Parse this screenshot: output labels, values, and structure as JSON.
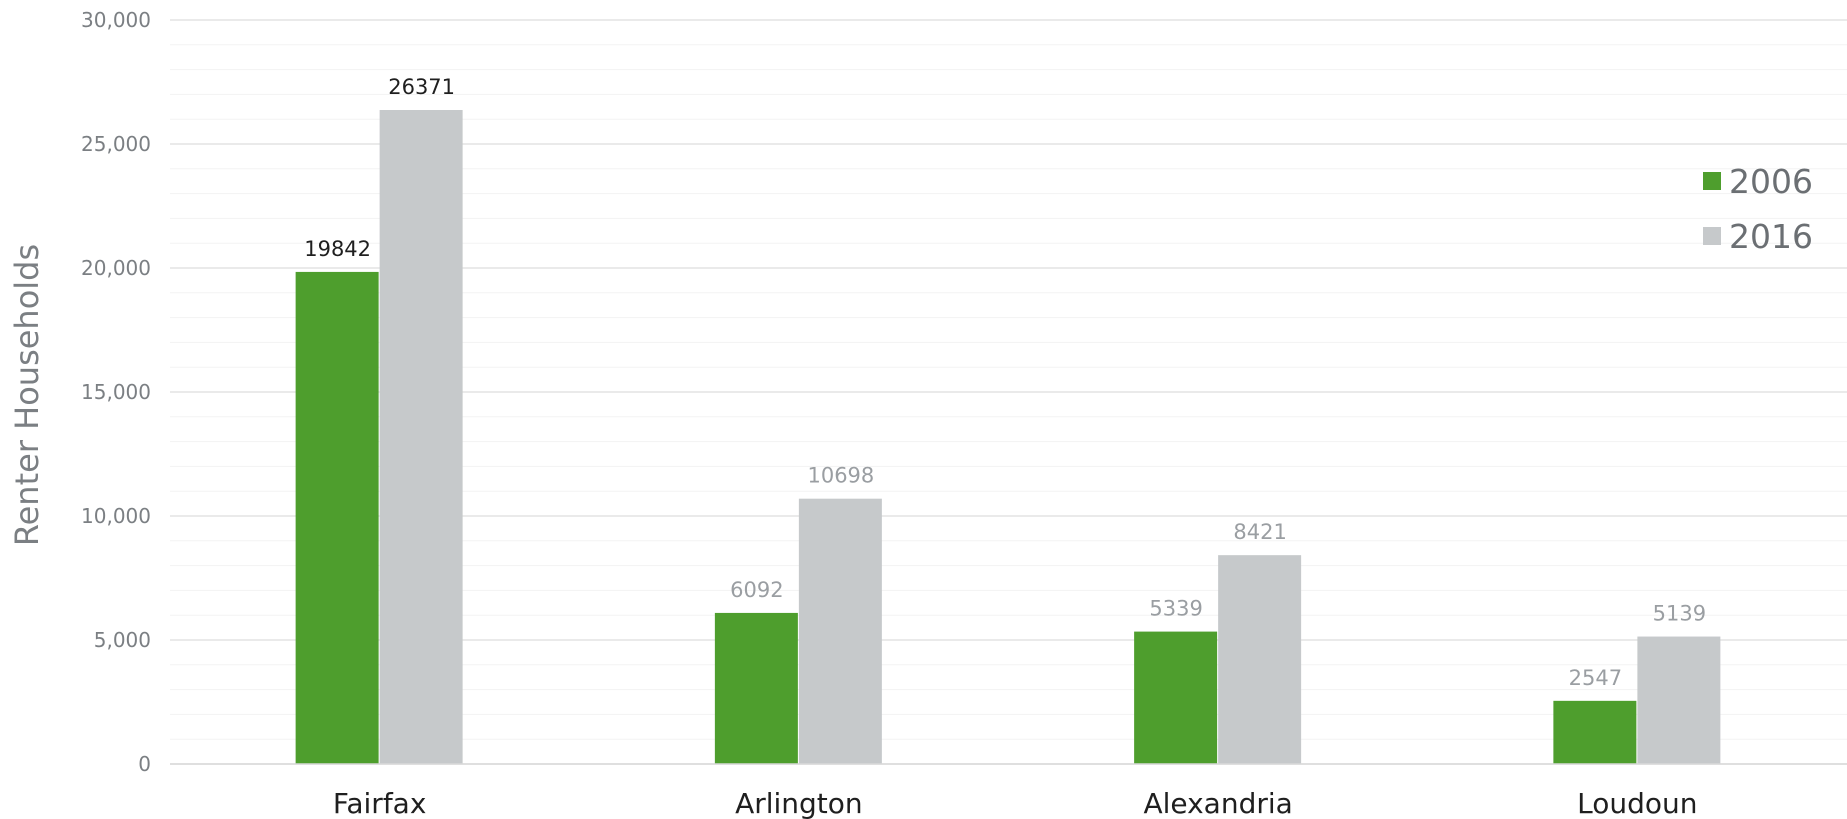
{
  "chart_data": {
    "type": "bar",
    "ylabel": "Renter Households",
    "xlabel": "",
    "ylim": [
      0,
      30000
    ],
    "yticks": [
      0,
      5000,
      10000,
      15000,
      20000,
      25000,
      30000
    ],
    "ytick_labels": [
      "0",
      "5,000",
      "10,000",
      "15,000",
      "20,000",
      "25,000",
      "30,000"
    ],
    "categories": [
      "Fairfax",
      "Arlington",
      "Alexandria",
      "Loudoun"
    ],
    "series": [
      {
        "name": "2006",
        "color": "#4e9e2d",
        "values": [
          19842,
          6092,
          5339,
          2547
        ]
      },
      {
        "name": "2016",
        "color": "#c6c9cb",
        "values": [
          26371,
          10698,
          8421,
          5139
        ]
      }
    ],
    "data_label_colors": [
      "#1f1f1f",
      "#9a9ea2",
      "#9a9ea2",
      "#9a9ea2"
    ],
    "grid": true,
    "legend": "right"
  }
}
